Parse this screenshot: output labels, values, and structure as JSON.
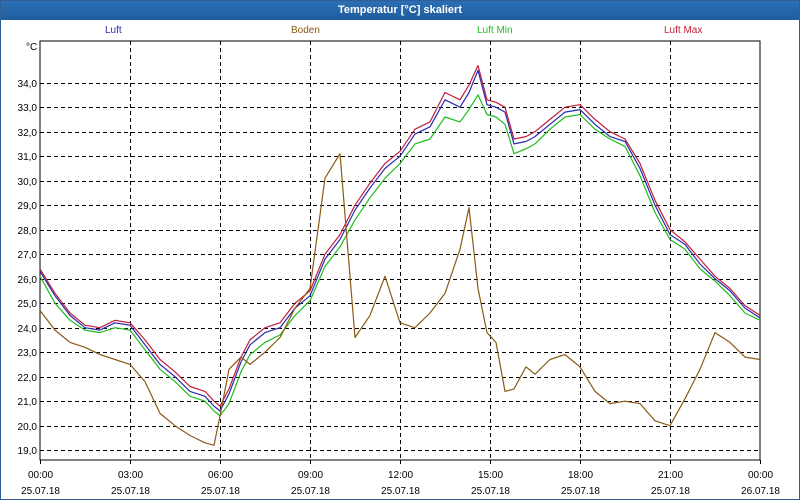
{
  "window": {
    "title": "Temperatur [°C] skaliert"
  },
  "legend": [
    {
      "label": "Luft",
      "color": "#2b2bb0"
    },
    {
      "label": "Boden",
      "color": "#8b5a16"
    },
    {
      "label": "Luft Min",
      "color": "#1fbd1f"
    },
    {
      "label": "Luft Max",
      "color": "#c0203a"
    }
  ],
  "chart_data": {
    "type": "line",
    "title": "Temperatur [°C] skaliert",
    "ylabel": "°C",
    "xlabel": "",
    "ylim": [
      18.6,
      35.7
    ],
    "xlim": [
      0,
      24
    ],
    "grid": true,
    "legend_position": "top",
    "y_ticks": [
      "19,0",
      "20,0",
      "21,0",
      "22,0",
      "23,0",
      "24,0",
      "25,0",
      "26,0",
      "27,0",
      "28,0",
      "29,0",
      "30,0",
      "31,0",
      "32,0",
      "33,0",
      "34,0"
    ],
    "x_ticks": [
      {
        "time": "00:00",
        "date": "25.07.18"
      },
      {
        "time": "03:00",
        "date": "25.07.18"
      },
      {
        "time": "06:00",
        "date": "25.07.18"
      },
      {
        "time": "09:00",
        "date": "25.07.18"
      },
      {
        "time": "12:00",
        "date": "25.07.18"
      },
      {
        "time": "15:00",
        "date": "25.07.18"
      },
      {
        "time": "18:00",
        "date": "25.07.18"
      },
      {
        "time": "21:00",
        "date": "25.07.18"
      },
      {
        "time": "00:00",
        "date": "26.07.18"
      }
    ],
    "x_hours": [
      0,
      0.5,
      1,
      1.5,
      2,
      2.5,
      3,
      3.5,
      4,
      4.5,
      5,
      5.5,
      5.8,
      6,
      6.3,
      6.7,
      7,
      7.5,
      8,
      8.5,
      9,
      9.5,
      10,
      10.5,
      11,
      11.5,
      12,
      12.5,
      13,
      13.5,
      14,
      14.3,
      14.6,
      14.9,
      15.2,
      15.5,
      15.8,
      16.2,
      16.5,
      17,
      17.5,
      18,
      18.5,
      19,
      19.5,
      20,
      20.5,
      21,
      21.5,
      22,
      22.5,
      23,
      23.5,
      24
    ],
    "series": [
      {
        "name": "Luft",
        "color": "#2b2bb0",
        "values": [
          26.3,
          25.3,
          24.5,
          24.0,
          23.9,
          24.2,
          24.1,
          23.3,
          22.5,
          22.0,
          21.4,
          21.2,
          20.8,
          20.6,
          21.3,
          22.6,
          23.3,
          23.8,
          24.0,
          24.8,
          25.3,
          26.8,
          27.6,
          28.8,
          29.7,
          30.5,
          31.0,
          31.9,
          32.2,
          33.3,
          33.0,
          33.6,
          34.5,
          33.1,
          33.0,
          32.8,
          31.5,
          31.6,
          31.8,
          32.3,
          32.8,
          32.9,
          32.3,
          31.8,
          31.6,
          30.5,
          29.0,
          27.8,
          27.4,
          26.6,
          26.0,
          25.5,
          24.8,
          24.4
        ]
      },
      {
        "name": "Luft Min",
        "color": "#1fbd1f",
        "values": [
          26.1,
          25.0,
          24.3,
          23.9,
          23.8,
          24.0,
          23.9,
          23.1,
          22.3,
          21.8,
          21.2,
          21.0,
          20.6,
          20.4,
          20.9,
          22.2,
          22.9,
          23.4,
          23.7,
          24.5,
          25.1,
          26.5,
          27.3,
          28.4,
          29.3,
          30.1,
          30.7,
          31.5,
          31.7,
          32.6,
          32.4,
          32.9,
          33.5,
          32.7,
          32.6,
          32.3,
          31.1,
          31.3,
          31.5,
          32.1,
          32.6,
          32.7,
          32.1,
          31.7,
          31.4,
          30.2,
          28.7,
          27.6,
          27.2,
          26.4,
          25.9,
          25.3,
          24.6,
          24.3
        ]
      },
      {
        "name": "Luft Max",
        "color": "#c0203a",
        "values": [
          26.4,
          25.4,
          24.6,
          24.1,
          24.0,
          24.3,
          24.2,
          23.5,
          22.7,
          22.2,
          21.6,
          21.4,
          21.0,
          20.8,
          21.5,
          22.8,
          23.5,
          24.0,
          24.2,
          25.0,
          25.5,
          27.0,
          27.8,
          29.0,
          29.9,
          30.7,
          31.2,
          32.1,
          32.4,
          33.6,
          33.3,
          33.9,
          34.7,
          33.3,
          33.2,
          33.0,
          31.7,
          31.8,
          32.0,
          32.5,
          33.0,
          33.1,
          32.5,
          32.0,
          31.7,
          30.7,
          29.2,
          28.0,
          27.5,
          26.8,
          26.1,
          25.6,
          24.9,
          24.5
        ]
      },
      {
        "name": "Boden",
        "color": "#8b5a16",
        "values": [
          24.7,
          23.9,
          23.4,
          23.2,
          22.9,
          22.7,
          22.5,
          21.8,
          20.5,
          20.0,
          19.6,
          19.3,
          19.2,
          20.4,
          22.3,
          22.8,
          22.5,
          23.0,
          23.6,
          24.8,
          25.6,
          30.1,
          31.1,
          23.6,
          24.5,
          26.1,
          24.2,
          24.0,
          24.6,
          25.4,
          27.2,
          28.9,
          25.6,
          23.8,
          23.4,
          21.4,
          21.5,
          22.4,
          22.1,
          22.7,
          22.9,
          22.4,
          21.4,
          20.9,
          21.0,
          20.9,
          20.2,
          20.0,
          21.1,
          22.3,
          23.8,
          23.4,
          22.8,
          22.7
        ]
      }
    ]
  }
}
